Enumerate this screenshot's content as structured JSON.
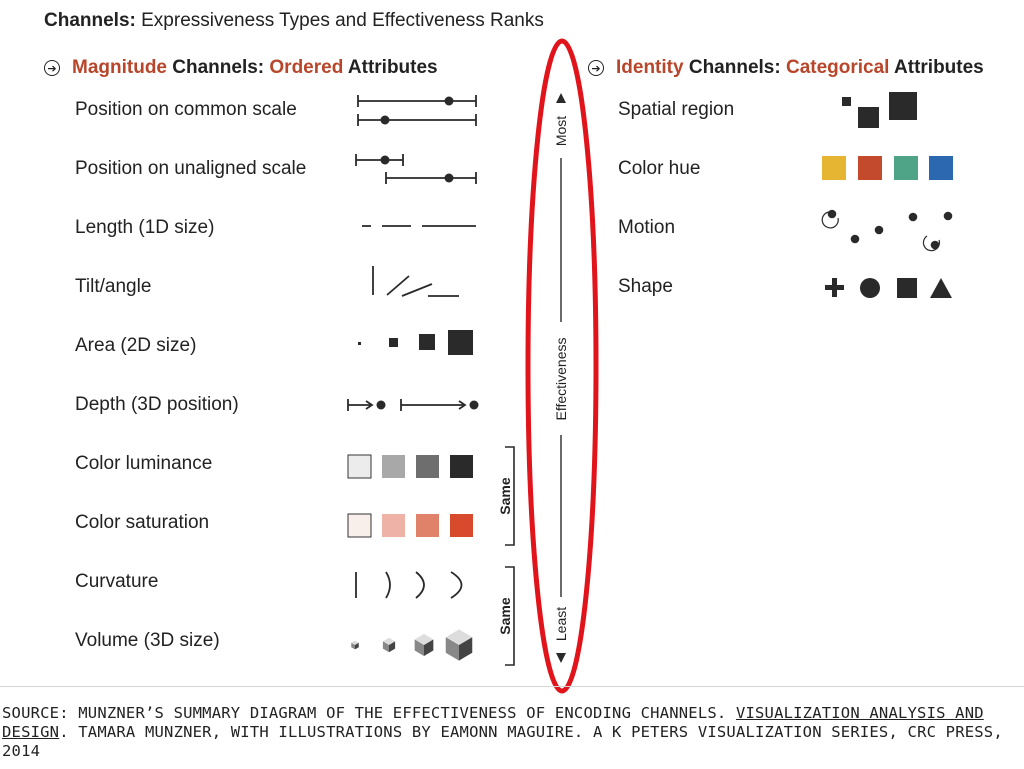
{
  "title": {
    "bold": "Channels:",
    "rest": " Expressiveness Types and Effectiveness Ranks"
  },
  "magnitude": {
    "head_a": "Magnitude",
    "head_b": " Channels: ",
    "head_c": "Ordered",
    "head_d": " Attributes",
    "rows": [
      "Position on common scale",
      "Position on unaligned scale",
      "Length (1D size)",
      "Tilt/angle",
      "Area (2D size)",
      "Depth (3D position)",
      "Color luminance",
      "Color saturation",
      "Curvature",
      "Volume (3D size)"
    ]
  },
  "identity": {
    "head_a": "Identity",
    "head_b": " Channels: ",
    "head_c": "Categorical",
    "head_d": " Attributes",
    "rows": [
      "Spatial region",
      "Color hue",
      "Motion",
      "Shape"
    ]
  },
  "effectiveness": {
    "most": "Most",
    "label": "Effectiveness",
    "least": "Least"
  },
  "bracket_label": "Same",
  "colors": {
    "accent": "#b8462a",
    "highlight_ellipse": "#e0141a",
    "luminance": [
      "#ececec",
      "#a8a8a8",
      "#6e6e6e",
      "#2a2a2a"
    ],
    "saturation": [
      "#f8efeb",
      "#eeb3a6",
      "#e0826a",
      "#d84a2c"
    ],
    "hue": [
      "#e6b531",
      "#c34a2c",
      "#4fa386",
      "#2c68b0"
    ]
  },
  "source": {
    "prefix": "SOURCE: MUNZNER’S SUMMARY DIAGRAM OF THE EFFECTIVENESS OF ENCODING CHANNELS. ",
    "book": "VISUALIZATION ANALYSIS AND DESIGN",
    "suffix": ". TAMARA MUNZNER, WITH ILLUSTRATIONS BY EAMONN MAGUIRE. A K PETERS VISUALIZATION SERIES, CRC PRESS, 2014"
  }
}
